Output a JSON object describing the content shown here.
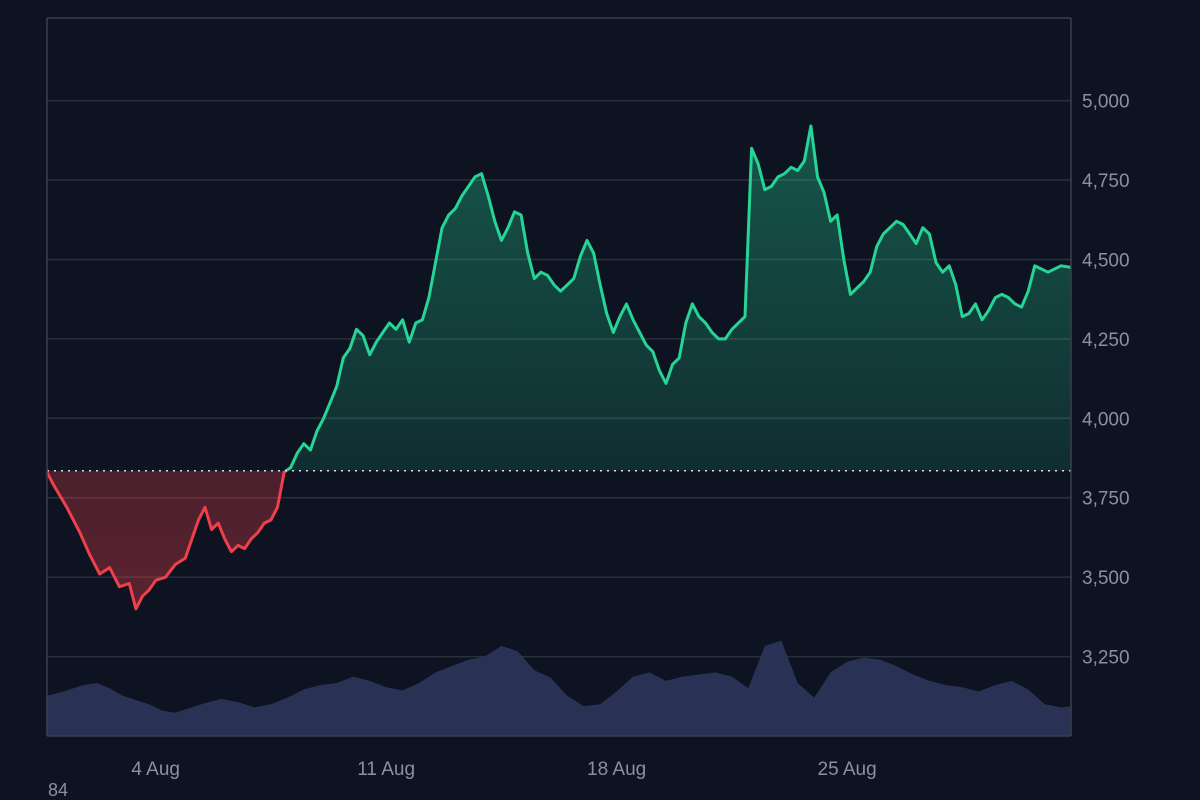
{
  "chart_data": {
    "type": "area",
    "baseline": 3835,
    "ylim": [
      3000,
      5260
    ],
    "y_ticks": [
      3250,
      3500,
      3750,
      4000,
      4250,
      4500,
      4750,
      5000
    ],
    "x_ticks": [
      {
        "label": "4 Aug",
        "day": 4
      },
      {
        "label": "11 Aug",
        "day": 11
      },
      {
        "label": "18 Aug",
        "day": 18
      },
      {
        "label": "25 Aug",
        "day": 25
      }
    ],
    "x_range_days": [
      0.7,
      31.8
    ],
    "colors": {
      "up": "#26d495",
      "down": "#ee3f4b",
      "volume": "#2b3457",
      "grid": "#2a303d",
      "baseline": "#d7dbe2"
    },
    "price_series": {
      "name": "",
      "points": [
        [
          0.7,
          3830
        ],
        [
          0.9,
          3790
        ],
        [
          1.3,
          3720
        ],
        [
          1.7,
          3640
        ],
        [
          2.0,
          3570
        ],
        [
          2.3,
          3510
        ],
        [
          2.6,
          3530
        ],
        [
          2.9,
          3470
        ],
        [
          3.2,
          3480
        ],
        [
          3.4,
          3400
        ],
        [
          3.6,
          3440
        ],
        [
          3.8,
          3460
        ],
        [
          4.0,
          3490
        ],
        [
          4.3,
          3500
        ],
        [
          4.6,
          3540
        ],
        [
          4.9,
          3560
        ],
        [
          5.1,
          3620
        ],
        [
          5.3,
          3680
        ],
        [
          5.5,
          3720
        ],
        [
          5.7,
          3650
        ],
        [
          5.9,
          3670
        ],
        [
          6.1,
          3620
        ],
        [
          6.3,
          3580
        ],
        [
          6.5,
          3600
        ],
        [
          6.7,
          3590
        ],
        [
          6.9,
          3620
        ],
        [
          7.1,
          3640
        ],
        [
          7.3,
          3670
        ],
        [
          7.5,
          3680
        ],
        [
          7.7,
          3720
        ],
        [
          7.9,
          3830
        ],
        [
          8.1,
          3845
        ],
        [
          8.3,
          3890
        ],
        [
          8.5,
          3920
        ],
        [
          8.7,
          3900
        ],
        [
          8.9,
          3960
        ],
        [
          9.1,
          4000
        ],
        [
          9.3,
          4050
        ],
        [
          9.5,
          4100
        ],
        [
          9.7,
          4190
        ],
        [
          9.9,
          4220
        ],
        [
          10.1,
          4280
        ],
        [
          10.3,
          4260
        ],
        [
          10.5,
          4200
        ],
        [
          10.7,
          4240
        ],
        [
          10.9,
          4270
        ],
        [
          11.1,
          4300
        ],
        [
          11.3,
          4280
        ],
        [
          11.5,
          4310
        ],
        [
          11.7,
          4240
        ],
        [
          11.9,
          4300
        ],
        [
          12.1,
          4310
        ],
        [
          12.3,
          4380
        ],
        [
          12.5,
          4490
        ],
        [
          12.7,
          4600
        ],
        [
          12.9,
          4640
        ],
        [
          13.1,
          4660
        ],
        [
          13.3,
          4700
        ],
        [
          13.5,
          4730
        ],
        [
          13.7,
          4760
        ],
        [
          13.9,
          4770
        ],
        [
          14.1,
          4700
        ],
        [
          14.3,
          4620
        ],
        [
          14.5,
          4560
        ],
        [
          14.7,
          4600
        ],
        [
          14.9,
          4650
        ],
        [
          15.1,
          4640
        ],
        [
          15.3,
          4520
        ],
        [
          15.5,
          4440
        ],
        [
          15.7,
          4460
        ],
        [
          15.9,
          4450
        ],
        [
          16.1,
          4420
        ],
        [
          16.3,
          4400
        ],
        [
          16.5,
          4420
        ],
        [
          16.7,
          4440
        ],
        [
          16.9,
          4510
        ],
        [
          17.1,
          4560
        ],
        [
          17.3,
          4520
        ],
        [
          17.5,
          4420
        ],
        [
          17.7,
          4330
        ],
        [
          17.9,
          4270
        ],
        [
          18.1,
          4320
        ],
        [
          18.3,
          4360
        ],
        [
          18.5,
          4310
        ],
        [
          18.7,
          4270
        ],
        [
          18.9,
          4230
        ],
        [
          19.1,
          4210
        ],
        [
          19.3,
          4150
        ],
        [
          19.5,
          4110
        ],
        [
          19.7,
          4170
        ],
        [
          19.9,
          4190
        ],
        [
          20.1,
          4300
        ],
        [
          20.3,
          4360
        ],
        [
          20.5,
          4320
        ],
        [
          20.7,
          4300
        ],
        [
          20.9,
          4270
        ],
        [
          21.1,
          4250
        ],
        [
          21.3,
          4250
        ],
        [
          21.5,
          4280
        ],
        [
          21.7,
          4300
        ],
        [
          21.9,
          4320
        ],
        [
          22.1,
          4850
        ],
        [
          22.3,
          4800
        ],
        [
          22.5,
          4720
        ],
        [
          22.7,
          4730
        ],
        [
          22.9,
          4760
        ],
        [
          23.1,
          4770
        ],
        [
          23.3,
          4790
        ],
        [
          23.5,
          4780
        ],
        [
          23.7,
          4810
        ],
        [
          23.9,
          4920
        ],
        [
          24.1,
          4760
        ],
        [
          24.3,
          4710
        ],
        [
          24.5,
          4620
        ],
        [
          24.7,
          4640
        ],
        [
          24.9,
          4500
        ],
        [
          25.1,
          4390
        ],
        [
          25.3,
          4410
        ],
        [
          25.5,
          4430
        ],
        [
          25.7,
          4460
        ],
        [
          25.9,
          4540
        ],
        [
          26.1,
          4580
        ],
        [
          26.3,
          4600
        ],
        [
          26.5,
          4620
        ],
        [
          26.7,
          4610
        ],
        [
          26.9,
          4580
        ],
        [
          27.1,
          4550
        ],
        [
          27.3,
          4600
        ],
        [
          27.5,
          4580
        ],
        [
          27.7,
          4490
        ],
        [
          27.9,
          4460
        ],
        [
          28.1,
          4480
        ],
        [
          28.3,
          4420
        ],
        [
          28.5,
          4320
        ],
        [
          28.7,
          4330
        ],
        [
          28.9,
          4360
        ],
        [
          29.1,
          4310
        ],
        [
          29.3,
          4340
        ],
        [
          29.5,
          4380
        ],
        [
          29.7,
          4390
        ],
        [
          29.9,
          4380
        ],
        [
          30.1,
          4360
        ],
        [
          30.3,
          4350
        ],
        [
          30.5,
          4400
        ],
        [
          30.7,
          4480
        ],
        [
          30.9,
          4470
        ],
        [
          31.1,
          4460
        ],
        [
          31.3,
          4470
        ],
        [
          31.5,
          4480
        ],
        [
          31.8,
          4475
        ]
      ]
    },
    "volume_series": {
      "name": "",
      "ylim": [
        0,
        1
      ],
      "points": [
        [
          0.7,
          0.38
        ],
        [
          1.2,
          0.42
        ],
        [
          1.8,
          0.48
        ],
        [
          2.2,
          0.5
        ],
        [
          2.6,
          0.45
        ],
        [
          3.0,
          0.38
        ],
        [
          3.4,
          0.34
        ],
        [
          3.8,
          0.3
        ],
        [
          4.2,
          0.24
        ],
        [
          4.6,
          0.22
        ],
        [
          5.0,
          0.26
        ],
        [
          5.5,
          0.31
        ],
        [
          6.0,
          0.35
        ],
        [
          6.5,
          0.32
        ],
        [
          7.0,
          0.27
        ],
        [
          7.5,
          0.3
        ],
        [
          8.0,
          0.36
        ],
        [
          8.5,
          0.44
        ],
        [
          9.0,
          0.48
        ],
        [
          9.5,
          0.5
        ],
        [
          10.0,
          0.56
        ],
        [
          10.5,
          0.52
        ],
        [
          11.0,
          0.46
        ],
        [
          11.5,
          0.43
        ],
        [
          12.0,
          0.5
        ],
        [
          12.5,
          0.6
        ],
        [
          13.0,
          0.66
        ],
        [
          13.5,
          0.72
        ],
        [
          14.0,
          0.75
        ],
        [
          14.5,
          0.85
        ],
        [
          15.0,
          0.8
        ],
        [
          15.5,
          0.62
        ],
        [
          16.0,
          0.55
        ],
        [
          16.5,
          0.38
        ],
        [
          17.0,
          0.28
        ],
        [
          17.5,
          0.3
        ],
        [
          18.0,
          0.42
        ],
        [
          18.5,
          0.56
        ],
        [
          19.0,
          0.6
        ],
        [
          19.5,
          0.52
        ],
        [
          20.0,
          0.56
        ],
        [
          20.5,
          0.58
        ],
        [
          21.0,
          0.6
        ],
        [
          21.5,
          0.56
        ],
        [
          22.0,
          0.45
        ],
        [
          22.5,
          0.85
        ],
        [
          23.0,
          0.9
        ],
        [
          23.5,
          0.5
        ],
        [
          24.0,
          0.36
        ],
        [
          24.5,
          0.6
        ],
        [
          25.0,
          0.7
        ],
        [
          25.5,
          0.74
        ],
        [
          26.0,
          0.72
        ],
        [
          26.5,
          0.66
        ],
        [
          27.0,
          0.58
        ],
        [
          27.5,
          0.52
        ],
        [
          28.0,
          0.48
        ],
        [
          28.5,
          0.46
        ],
        [
          29.0,
          0.42
        ],
        [
          29.5,
          0.48
        ],
        [
          30.0,
          0.52
        ],
        [
          30.5,
          0.44
        ],
        [
          31.0,
          0.3
        ],
        [
          31.5,
          0.27
        ],
        [
          31.8,
          0.28
        ]
      ]
    }
  },
  "corner_label": "84"
}
